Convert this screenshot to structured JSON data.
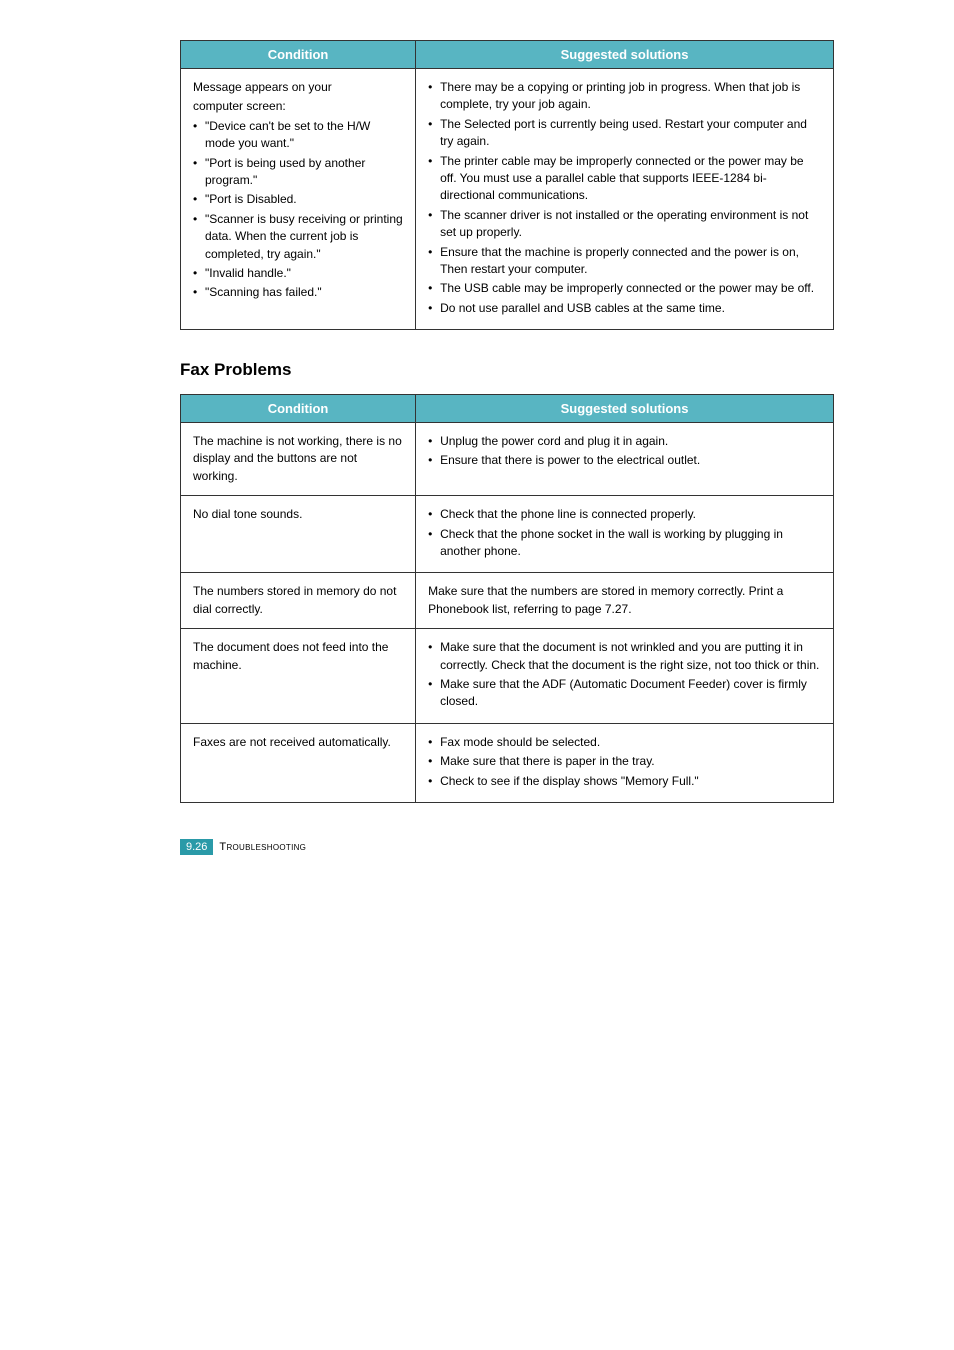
{
  "colors": {
    "header_bg": "#58b5c2",
    "header_text": "#ffffff",
    "border": "#333333",
    "body_text": "#000000",
    "badge_bg": "#2a9aa8",
    "page_bg": "#ffffff"
  },
  "typography": {
    "font_family": "Verdana, Geneva, sans-serif",
    "cell_fontsize_pt": 9,
    "header_fontsize_pt": 10,
    "heading_fontsize_pt": 13
  },
  "table1": {
    "headers": {
      "condition": "Condition",
      "solutions": "Suggested solutions"
    },
    "row": {
      "condition_intro1": "Message appears on your",
      "condition_intro2": "computer screen:",
      "condition_bullets": [
        "\"Device can't be set to the H/W mode you want.\"",
        "\"Port is being used by another program.\"",
        "\"Port is Disabled.",
        "\"Scanner is busy receiving or printing data. When the current job is completed, try again.\"",
        "\"Invalid handle.\"",
        "\"Scanning has failed.\""
      ],
      "solution_bullets": [
        "There may be a copying or printing job in progress. When that job is complete, try your job again.",
        "The Selected port is currently being used. Restart your computer and try again.",
        "The printer cable may be improperly connected or the power may be off. You must use a parallel cable that supports IEEE-1284 bi-directional communications.",
        "The scanner driver is not installed or the operating environment is not set up properly.",
        "Ensure that the machine is properly connected and the power is on, Then restart your computer.",
        "The USB cable may be improperly connected or the power may be off.",
        "Do not use parallel and USB cables at the same time."
      ]
    }
  },
  "section_heading": "Fax Problems",
  "table2": {
    "headers": {
      "condition": "Condition",
      "solutions": "Suggested solutions"
    },
    "rows": [
      {
        "condition": "The machine is not working, there is no display and the buttons are not working.",
        "solutions": [
          "Unplug the power cord and plug it in again.",
          "Ensure that there is power to the electrical outlet."
        ],
        "solutions_plain": null
      },
      {
        "condition": "No dial tone sounds.",
        "solutions": [
          "Check that the phone line is connected properly.",
          "Check that the phone socket in the wall is working by plugging in another phone."
        ],
        "solutions_plain": null
      },
      {
        "condition": "The numbers stored in memory do not dial correctly.",
        "solutions": null,
        "solutions_plain": "Make sure that the numbers are stored in memory correctly. Print a Phonebook list, referring to page 7.27."
      },
      {
        "condition": "The document does not feed into the machine.",
        "solutions": [
          "Make sure that the document is not wrinkled and you are putting it in correctly. Check that the document is the right size, not too thick or thin.",
          "Make sure that the ADF (Automatic Document Feeder) cover is firmly closed."
        ],
        "solutions_plain": null
      },
      {
        "condition": "Faxes are not received automatically.",
        "solutions": [
          "Fax mode should be selected.",
          "Make sure that there is paper in the tray.",
          "Check to see if the display shows \"Memory Full.\""
        ],
        "solutions_plain": null
      }
    ]
  },
  "footer": {
    "page_number": "9.26",
    "label": "Troubleshooting"
  }
}
